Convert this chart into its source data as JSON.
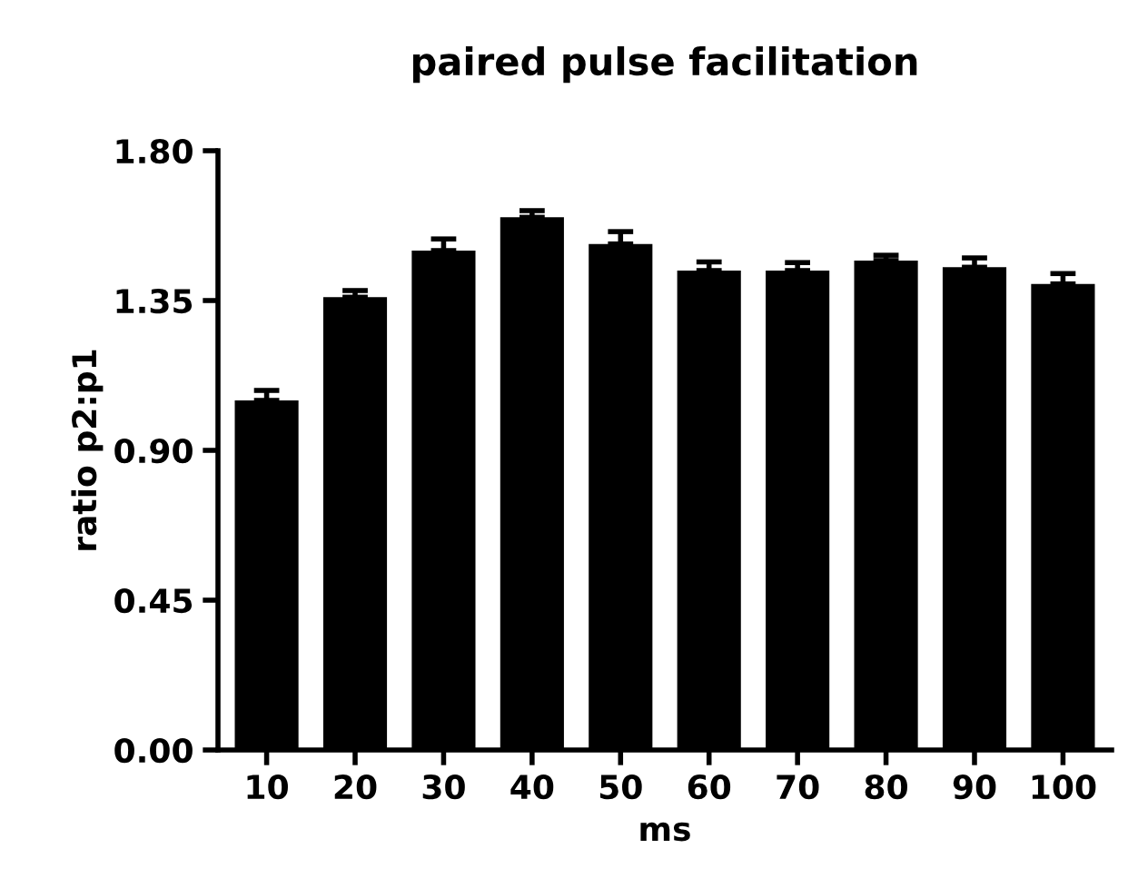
{
  "chart_data": {
    "type": "bar",
    "title": "paired pulse facilitation",
    "xlabel": "ms",
    "ylabel": "ratio p2:p1",
    "categories": [
      "10",
      "20",
      "30",
      "40",
      "50",
      "60",
      "70",
      "80",
      "90",
      "100"
    ],
    "values": [
      1.05,
      1.36,
      1.5,
      1.6,
      1.52,
      1.44,
      1.44,
      1.47,
      1.45,
      1.4
    ],
    "errors": [
      0.03,
      0.02,
      0.035,
      0.02,
      0.037,
      0.026,
      0.024,
      0.016,
      0.028,
      0.031
    ],
    "color": "#000000",
    "ylim": [
      0,
      1.8
    ],
    "yticks": [
      {
        "value": 0,
        "label": "0.00"
      },
      {
        "value": 0.45,
        "label": "0.45"
      },
      {
        "value": 0.9,
        "label": "0.90"
      },
      {
        "value": 1.35,
        "label": "1.35"
      },
      {
        "value": 1.8,
        "label": "1.80"
      }
    ],
    "grid": false
  }
}
